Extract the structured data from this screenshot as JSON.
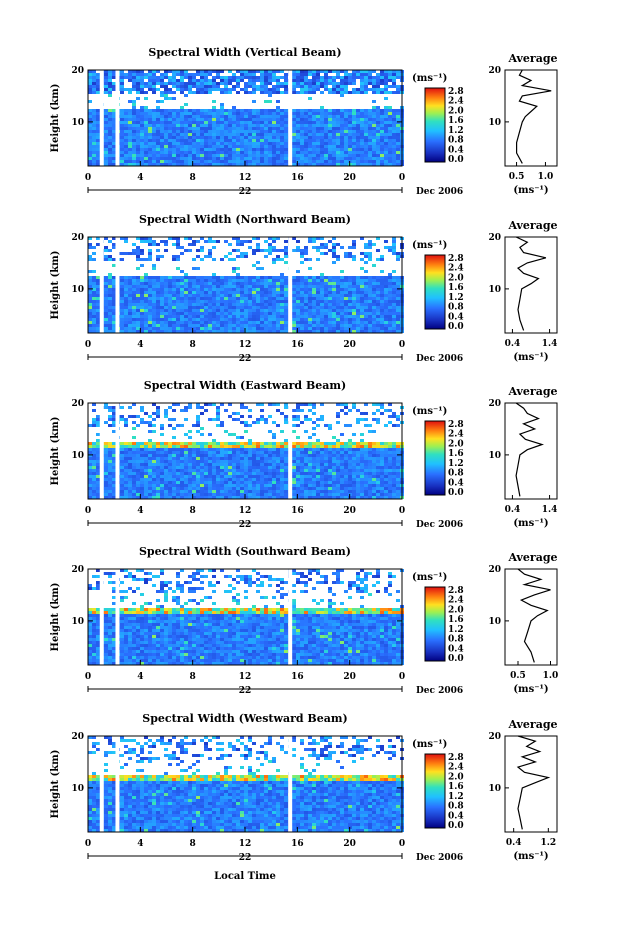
{
  "colorbar": {
    "unit": "(ms⁻¹)",
    "ticks": [
      "0.0",
      "0.4",
      "0.8",
      "1.2",
      "1.6",
      "2.0",
      "2.4",
      "2.8"
    ]
  },
  "xaxis": {
    "ticks": [
      "0",
      "4",
      "8",
      "12",
      "16",
      "20",
      "0"
    ],
    "day_label": "22",
    "date_label": "Dec 2006",
    "label": "Local Time"
  },
  "yaxis": {
    "label": "Height (km)",
    "ticks": [
      "20",
      "10"
    ]
  },
  "profile_axis": {
    "title": "Average",
    "unit": "(ms⁻¹)"
  },
  "chart_data": [
    {
      "type": "heatmap",
      "title": "Spectral Width (Vertical Beam)",
      "ylabel": "Height (km)",
      "xlim": [
        0,
        24
      ],
      "ylim": [
        1.5,
        20
      ],
      "colorbar_range": [
        0.0,
        2.8
      ],
      "data_gaps_hours": [
        0.9,
        2.1,
        15.3
      ],
      "average_profile": {
        "xticks": [
          "0.5",
          "1.0"
        ],
        "xlim": [
          0.3,
          1.2
        ],
        "height_km": [
          2,
          4,
          6,
          8,
          10,
          11,
          12,
          13,
          14,
          15,
          16,
          17,
          18,
          19,
          20
        ],
        "width_ms": [
          0.6,
          0.5,
          0.5,
          0.55,
          0.6,
          0.65,
          0.75,
          0.85,
          0.55,
          0.6,
          1.1,
          0.6,
          0.75,
          0.55,
          0.6
        ]
      }
    },
    {
      "type": "heatmap",
      "title": "Spectral Width (Northward Beam)",
      "ylabel": "Height (km)",
      "xlim": [
        0,
        24
      ],
      "ylim": [
        1.5,
        20
      ],
      "colorbar_range": [
        0.0,
        2.8
      ],
      "data_gaps_hours": [
        0.9,
        2.1,
        15.3
      ],
      "average_profile": {
        "xticks": [
          "0.4",
          "1.4"
        ],
        "xlim": [
          0.2,
          1.6
        ],
        "height_km": [
          2,
          4,
          6,
          8,
          10,
          11,
          12,
          13,
          14,
          15,
          16,
          17,
          18,
          19,
          20
        ],
        "width_ms": [
          0.7,
          0.6,
          0.55,
          0.6,
          0.65,
          0.9,
          1.1,
          0.7,
          0.55,
          0.8,
          1.3,
          0.7,
          0.6,
          0.8,
          0.5
        ]
      }
    },
    {
      "type": "heatmap",
      "title": "Spectral Width (Eastward Beam)",
      "ylabel": "Height (km)",
      "xlim": [
        0,
        24
      ],
      "ylim": [
        1.5,
        20
      ],
      "colorbar_range": [
        0.0,
        2.8
      ],
      "data_gaps_hours": [
        0.9,
        2.1,
        15.3
      ],
      "average_profile": {
        "xticks": [
          "0.4",
          "1.4"
        ],
        "xlim": [
          0.2,
          1.6
        ],
        "height_km": [
          2,
          4,
          6,
          8,
          10,
          11,
          12,
          13,
          14,
          15,
          16,
          17,
          18,
          19,
          20
        ],
        "width_ms": [
          0.6,
          0.55,
          0.5,
          0.55,
          0.6,
          0.8,
          1.2,
          0.75,
          0.6,
          1.0,
          0.7,
          1.1,
          0.8,
          0.7,
          0.5
        ]
      }
    },
    {
      "type": "heatmap",
      "title": "Spectral Width (Southward Beam)",
      "ylabel": "Height (km)",
      "xlim": [
        0,
        24
      ],
      "ylim": [
        1.5,
        20
      ],
      "colorbar_range": [
        0.0,
        2.8
      ],
      "data_gaps_hours": [
        0.9,
        2.1,
        15.3
      ],
      "average_profile": {
        "xticks": [
          "0.5",
          "1.0"
        ],
        "xlim": [
          0.3,
          1.1
        ],
        "height_km": [
          2,
          4,
          6,
          8,
          10,
          11,
          12,
          13,
          14,
          15,
          16,
          17,
          18,
          19,
          20
        ],
        "width_ms": [
          0.75,
          0.7,
          0.6,
          0.65,
          0.7,
          0.8,
          0.95,
          0.7,
          0.55,
          0.75,
          1.0,
          0.6,
          0.85,
          0.6,
          0.5
        ]
      }
    },
    {
      "type": "heatmap",
      "title": "Spectral Width (Westward Beam)",
      "ylabel": "Height (km)",
      "xlim": [
        0,
        24
      ],
      "ylim": [
        1.5,
        20
      ],
      "colorbar_range": [
        0.0,
        2.8
      ],
      "data_gaps_hours": [
        0.9,
        2.1,
        15.3
      ],
      "average_profile": {
        "xticks": [
          "0.4",
          "1.2"
        ],
        "xlim": [
          0.2,
          1.4
        ],
        "height_km": [
          2,
          4,
          6,
          8,
          10,
          11,
          12,
          13,
          14,
          15,
          16,
          17,
          18,
          19,
          20
        ],
        "width_ms": [
          0.6,
          0.55,
          0.5,
          0.55,
          0.6,
          0.9,
          1.2,
          0.65,
          0.5,
          0.9,
          0.6,
          1.0,
          0.7,
          0.9,
          0.5
        ]
      }
    }
  ]
}
